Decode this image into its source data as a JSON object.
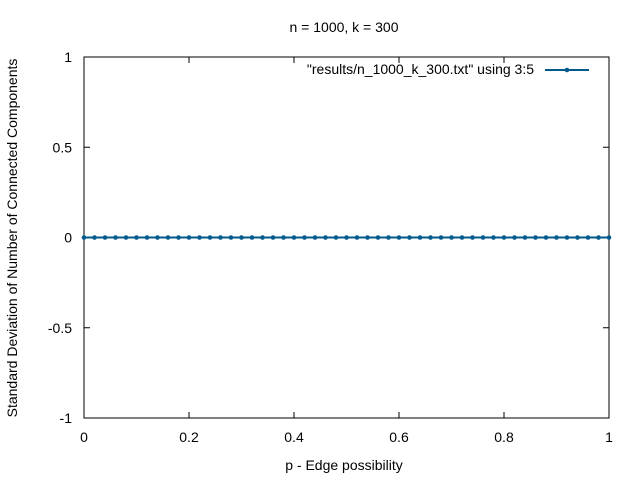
{
  "chart_data": {
    "type": "line",
    "title": "n = 1000, k = 300",
    "xlabel": "p - Edge possibility",
    "ylabel": "Standard Deviation of Number of Connected Components",
    "xlim": [
      0,
      1
    ],
    "ylim": [
      -1,
      1
    ],
    "x_ticks": [
      0,
      0.2,
      0.4,
      0.6,
      0.8,
      1
    ],
    "x_tick_labels": [
      "0",
      "0.2",
      "0.4",
      "0.6",
      "0.8",
      "1"
    ],
    "y_ticks": [
      1,
      0.5,
      0,
      -0.5,
      -1
    ],
    "y_tick_labels": [
      "1",
      "0.5",
      "0",
      "-0.5",
      "-1"
    ],
    "grid": false,
    "legend_position": "top-right",
    "series": [
      {
        "name": "\"results/n_1000_k_300.txt\" using 3:5",
        "color": "#005a8c",
        "x": [
          0,
          0.02,
          0.04,
          0.06,
          0.08,
          0.1,
          0.12,
          0.14,
          0.16,
          0.18,
          0.2,
          0.22,
          0.24,
          0.26,
          0.28,
          0.3,
          0.32,
          0.34,
          0.36,
          0.38,
          0.4,
          0.42,
          0.44,
          0.46,
          0.48,
          0.5,
          0.52,
          0.54,
          0.56,
          0.58,
          0.6,
          0.62,
          0.64,
          0.66,
          0.68,
          0.7,
          0.72,
          0.74,
          0.76,
          0.78,
          0.8,
          0.82,
          0.84,
          0.86,
          0.88,
          0.9,
          0.92,
          0.94,
          0.96,
          0.98,
          1
        ],
        "y": [
          0,
          0,
          0,
          0,
          0,
          0,
          0,
          0,
          0,
          0,
          0,
          0,
          0,
          0,
          0,
          0,
          0,
          0,
          0,
          0,
          0,
          0,
          0,
          0,
          0,
          0,
          0,
          0,
          0,
          0,
          0,
          0,
          0,
          0,
          0,
          0,
          0,
          0,
          0,
          0,
          0,
          0,
          0,
          0,
          0,
          0,
          0,
          0,
          0,
          0,
          0
        ]
      }
    ]
  }
}
